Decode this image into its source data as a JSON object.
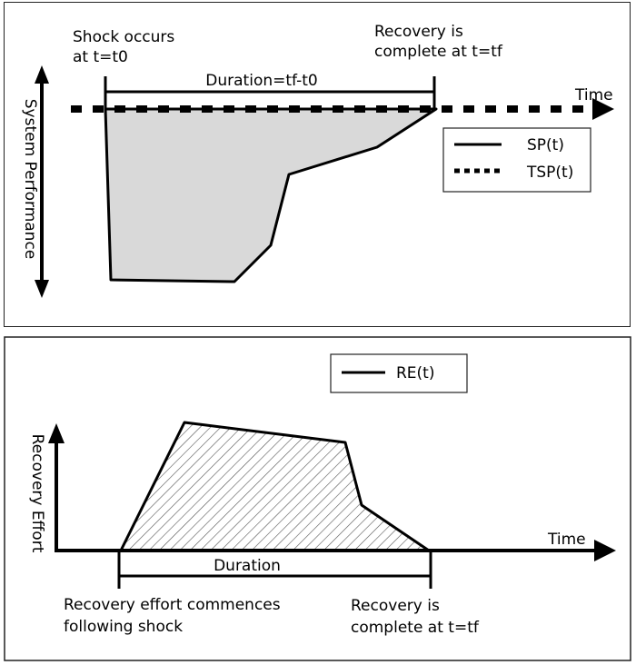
{
  "top_panel": {
    "ylabel": "System Performance",
    "xlabel": "Time",
    "annotation_left": [
      "Shock occurs",
      "at t=t0"
    ],
    "annotation_right": [
      "Recovery is",
      "complete at t=tf"
    ],
    "duration_label": "Duration=tf-t0",
    "legend": [
      {
        "label": "SP(t)",
        "style": "solid"
      },
      {
        "label": "TSP(t)",
        "style": "dotted"
      }
    ]
  },
  "bottom_panel": {
    "ylabel": "Recovery Effort",
    "xlabel": "Time",
    "duration_label": "Duration",
    "annotation_left": [
      "Recovery effort commences",
      "following shock"
    ],
    "annotation_right": [
      "Recovery is",
      "complete at t=tf"
    ],
    "legend": [
      {
        "label": "RE(t)",
        "style": "solid"
      }
    ]
  },
  "colors": {
    "line": "#000000",
    "fill_top": "#d9d9d9",
    "hatch": "#555555"
  }
}
